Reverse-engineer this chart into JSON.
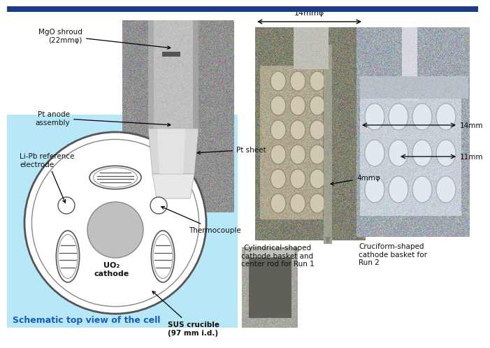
{
  "title_bar_color": "#1a3a8a",
  "background_color": "#ffffff",
  "schematic_bg_color": "#b8e8f8",
  "blue_text_color": "#1a5cb8",
  "black_text_color": "#111111",
  "annotations": {
    "mgo_shroud": "MgO shroud\n(22mmφ)",
    "pt_anode": "Pt anode\nassembly",
    "pt_sheet": "Pt sheet",
    "lipb_ref": "Li-Pb reference\nelectrode",
    "thermocouple": "Thermocouple",
    "uo2_cathode": "UO₂\ncathode",
    "sus_crucible": "SUS crucible\n(97 mm i.d.)",
    "schematic_label": "Schematic top view of the cell",
    "dim_14mm": "14mmφ",
    "dim_4mm": "4mmφ",
    "dim_14mm_right": "14mm",
    "dim_11mm": "11mm",
    "cylindrical_label": "Cylindrical-shaped\ncathode basket and\ncenter rod for Run 1",
    "cruciform_label": "Cruciform-shaped\ncathode basket for\nRun 2"
  }
}
